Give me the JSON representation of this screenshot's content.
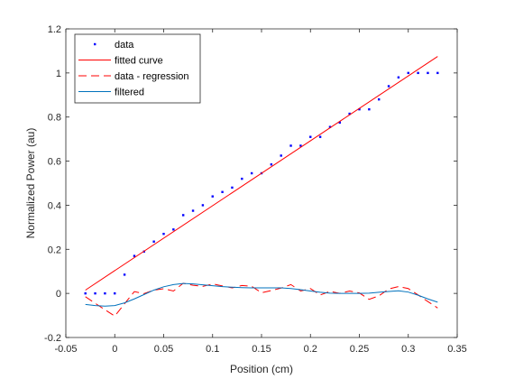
{
  "chart_data": {
    "type": "line",
    "title": "",
    "xlabel": "Position (cm)",
    "ylabel": "Normalized Power (au)",
    "xlim": [
      -0.05,
      0.35
    ],
    "ylim": [
      -0.2,
      1.2
    ],
    "xticks": [
      -0.05,
      0,
      0.05,
      0.1,
      0.15,
      0.2,
      0.25,
      0.3,
      0.35
    ],
    "xtick_labels": [
      "-0.05",
      "0",
      "0.05",
      "0.1",
      "0.15",
      "0.2",
      "0.25",
      "0.3",
      "0.35"
    ],
    "yticks": [
      -0.2,
      0,
      0.2,
      0.4,
      0.6,
      0.8,
      1,
      1.2
    ],
    "ytick_labels": [
      "-0.2",
      "0",
      "0.2",
      "0.4",
      "0.6",
      "0.8",
      "1",
      "1.2"
    ],
    "grid": false,
    "legend_position": "top-left",
    "series": [
      {
        "name": "data",
        "style": "points",
        "color": "#0000ff",
        "x": [
          -0.03,
          -0.02,
          -0.01,
          0,
          0.01,
          0.02,
          0.03,
          0.04,
          0.05,
          0.06,
          0.07,
          0.08,
          0.09,
          0.1,
          0.11,
          0.12,
          0.13,
          0.14,
          0.15,
          0.16,
          0.17,
          0.18,
          0.19,
          0.2,
          0.21,
          0.22,
          0.23,
          0.24,
          0.25,
          0.26,
          0.27,
          0.28,
          0.29,
          0.3,
          0.31,
          0.32,
          0.33
        ],
        "y": [
          0,
          0,
          0,
          0,
          0.085,
          0.17,
          0.19,
          0.235,
          0.27,
          0.29,
          0.355,
          0.375,
          0.4,
          0.44,
          0.46,
          0.48,
          0.52,
          0.545,
          0.545,
          0.585,
          0.625,
          0.67,
          0.67,
          0.71,
          0.71,
          0.755,
          0.775,
          0.815,
          0.835,
          0.835,
          0.88,
          0.94,
          0.98,
          1,
          1,
          1,
          1
        ]
      },
      {
        "name": "fitted curve",
        "style": "solid",
        "color": "#ff0000",
        "x": [
          -0.03,
          0.33
        ],
        "y": [
          0.015,
          1.075
        ]
      },
      {
        "name": "data - regression",
        "style": "dashed",
        "color": "#ff0000",
        "x": [
          -0.03,
          -0.02,
          -0.01,
          0,
          0.01,
          0.02,
          0.03,
          0.04,
          0.05,
          0.06,
          0.07,
          0.08,
          0.09,
          0.1,
          0.11,
          0.12,
          0.13,
          0.14,
          0.15,
          0.16,
          0.17,
          0.18,
          0.19,
          0.2,
          0.21,
          0.22,
          0.23,
          0.24,
          0.25,
          0.26,
          0.27,
          0.28,
          0.29,
          0.3,
          0.31,
          0.32,
          0.33
        ],
        "y": [
          -0.015,
          -0.045,
          -0.074,
          -0.103,
          -0.047,
          0.008,
          -0.001,
          0.015,
          0.021,
          0.011,
          0.046,
          0.037,
          0.032,
          0.043,
          0.034,
          0.025,
          0.036,
          0.032,
          0.003,
          0.013,
          0.024,
          0.04,
          0.011,
          0.022,
          -0.007,
          0.009,
          0,
          0.011,
          0.002,
          -0.027,
          -0.011,
          0.02,
          0.031,
          0.022,
          -0.007,
          -0.037,
          -0.066
        ]
      },
      {
        "name": "filtered",
        "style": "solid",
        "color": "#0072bd",
        "x": [
          -0.03,
          -0.02,
          -0.01,
          0,
          0.01,
          0.02,
          0.03,
          0.04,
          0.05,
          0.06,
          0.07,
          0.08,
          0.09,
          0.1,
          0.11,
          0.12,
          0.13,
          0.14,
          0.15,
          0.16,
          0.17,
          0.18,
          0.19,
          0.2,
          0.21,
          0.22,
          0.23,
          0.24,
          0.25,
          0.26,
          0.27,
          0.28,
          0.29,
          0.3,
          0.31,
          0.32,
          0.33
        ],
        "y": [
          -0.05,
          -0.055,
          -0.058,
          -0.055,
          -0.043,
          -0.025,
          -0.005,
          0.015,
          0.03,
          0.04,
          0.045,
          0.043,
          0.039,
          0.035,
          0.031,
          0.028,
          0.026,
          0.025,
          0.025,
          0.025,
          0.025,
          0.022,
          0.017,
          0.011,
          0.005,
          0.001,
          0,
          0,
          0,
          0.001,
          0.005,
          0.009,
          0.012,
          0.006,
          -0.008,
          -0.025,
          -0.04
        ]
      }
    ]
  }
}
